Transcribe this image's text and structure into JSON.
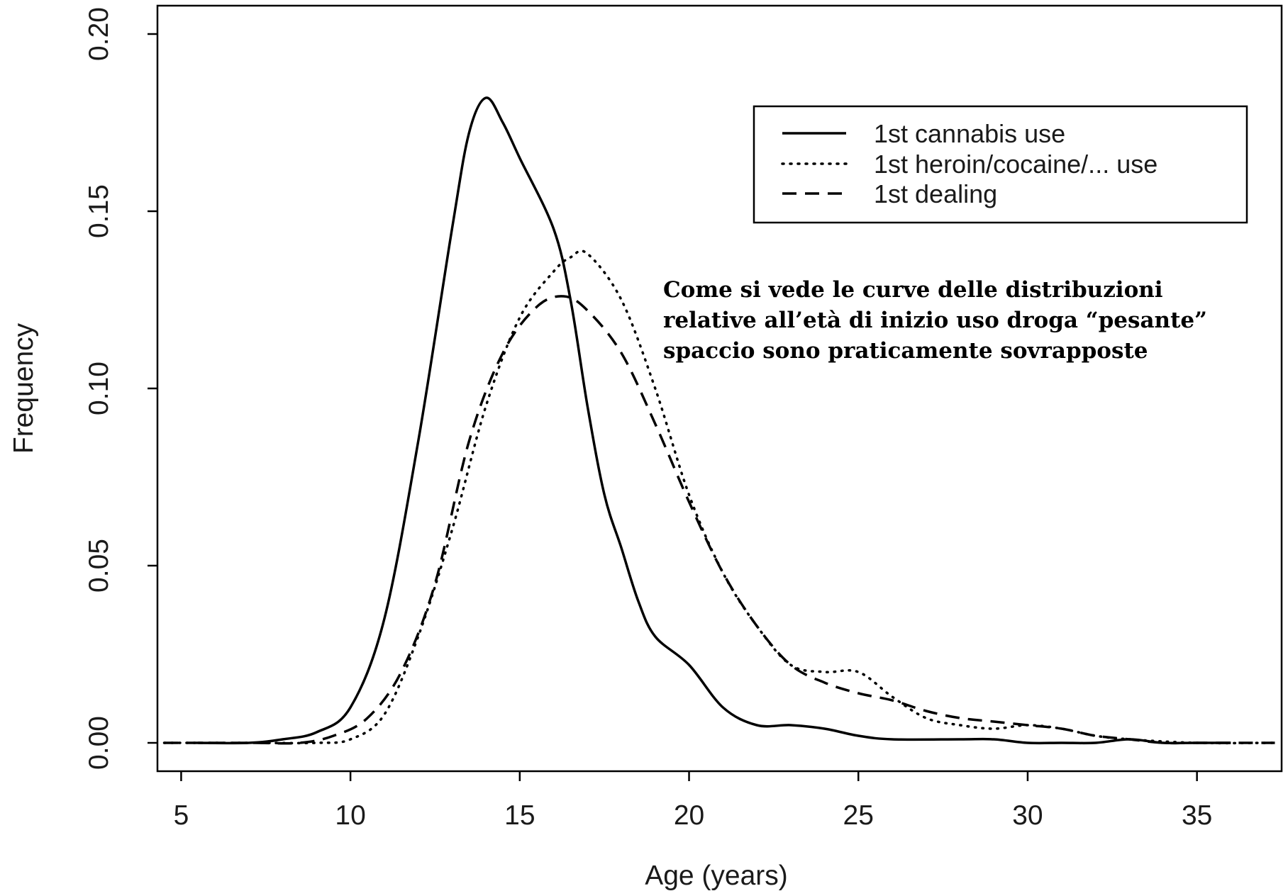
{
  "chart_data": {
    "type": "line",
    "title": "",
    "xlabel": "Age (years)",
    "ylabel": "Frequency",
    "xlim": [
      4.3,
      37.5
    ],
    "ylim": [
      -0.008,
      0.208
    ],
    "xticks": [
      5,
      10,
      15,
      20,
      25,
      30,
      35
    ],
    "xtick_labels": [
      "5",
      "10",
      "15",
      "20",
      "25",
      "30",
      "35"
    ],
    "yticks": [
      0.0,
      0.05,
      0.1,
      0.15,
      0.2
    ],
    "ytick_labels": [
      "0.00",
      "0.05",
      "0.10",
      "0.15",
      "0.20"
    ],
    "grid": false,
    "legend_position": "top-right",
    "series": [
      {
        "name": "1st cannabis use",
        "line_style": "solid",
        "color": "#000000",
        "points": [
          [
            5.5,
            0.0
          ],
          [
            7,
            0.0
          ],
          [
            8,
            0.001
          ],
          [
            9,
            0.003
          ],
          [
            10,
            0.01
          ],
          [
            11,
            0.035
          ],
          [
            12,
            0.085
          ],
          [
            13,
            0.145
          ],
          [
            13.5,
            0.172
          ],
          [
            14,
            0.182
          ],
          [
            14.5,
            0.175
          ],
          [
            15,
            0.165
          ],
          [
            16,
            0.145
          ],
          [
            16.5,
            0.125
          ],
          [
            17,
            0.095
          ],
          [
            17.5,
            0.07
          ],
          [
            18,
            0.055
          ],
          [
            18.5,
            0.04
          ],
          [
            19,
            0.03
          ],
          [
            20,
            0.022
          ],
          [
            21,
            0.01
          ],
          [
            22,
            0.005
          ],
          [
            23,
            0.005
          ],
          [
            24,
            0.004
          ],
          [
            25,
            0.002
          ],
          [
            26,
            0.001
          ],
          [
            28,
            0.001
          ],
          [
            29,
            0.001
          ],
          [
            30,
            0.0
          ],
          [
            31,
            0.0
          ],
          [
            32,
            0.0
          ],
          [
            33,
            0.001
          ],
          [
            34,
            0.0
          ],
          [
            35,
            0.0
          ],
          [
            36,
            0.0
          ]
        ]
      },
      {
        "name": "1st heroin/cocaine/... use",
        "line_style": "dotted",
        "color": "#000000",
        "points": [
          [
            4.5,
            0.0
          ],
          [
            7,
            0.0
          ],
          [
            9,
            0.0
          ],
          [
            10,
            0.001
          ],
          [
            11,
            0.008
          ],
          [
            12,
            0.03
          ],
          [
            13,
            0.06
          ],
          [
            14,
            0.095
          ],
          [
            15,
            0.12
          ],
          [
            16,
            0.133
          ],
          [
            16.5,
            0.137
          ],
          [
            17,
            0.138
          ],
          [
            18,
            0.125
          ],
          [
            19,
            0.1
          ],
          [
            20,
            0.07
          ],
          [
            21,
            0.048
          ],
          [
            22,
            0.033
          ],
          [
            23,
            0.022
          ],
          [
            24,
            0.02
          ],
          [
            25,
            0.02
          ],
          [
            26,
            0.013
          ],
          [
            27,
            0.007
          ],
          [
            28,
            0.005
          ],
          [
            29,
            0.004
          ],
          [
            30,
            0.005
          ],
          [
            31,
            0.004
          ],
          [
            32,
            0.002
          ],
          [
            33,
            0.001
          ],
          [
            35,
            0.0
          ],
          [
            37.3,
            0.0
          ]
        ]
      },
      {
        "name": "1st dealing",
        "line_style": "dashed",
        "color": "#000000",
        "points": [
          [
            4.5,
            0.0
          ],
          [
            7,
            0.0
          ],
          [
            8.5,
            0.0
          ],
          [
            9.5,
            0.002
          ],
          [
            10.5,
            0.007
          ],
          [
            11.5,
            0.02
          ],
          [
            12.5,
            0.045
          ],
          [
            13.5,
            0.085
          ],
          [
            14.5,
            0.11
          ],
          [
            15.5,
            0.123
          ],
          [
            16.3,
            0.126
          ],
          [
            17,
            0.122
          ],
          [
            18,
            0.11
          ],
          [
            19,
            0.09
          ],
          [
            20,
            0.068
          ],
          [
            21,
            0.048
          ],
          [
            22,
            0.033
          ],
          [
            23,
            0.022
          ],
          [
            24,
            0.017
          ],
          [
            25,
            0.014
          ],
          [
            26,
            0.012
          ],
          [
            27,
            0.009
          ],
          [
            28,
            0.007
          ],
          [
            29,
            0.006
          ],
          [
            30,
            0.005
          ],
          [
            31,
            0.004
          ],
          [
            32,
            0.002
          ],
          [
            33,
            0.001
          ],
          [
            34,
            0.0
          ],
          [
            35,
            0.0
          ],
          [
            37.3,
            0.0
          ]
        ]
      }
    ],
    "annotation": [
      "Come si vede le curve delle distribuzioni",
      "relative all’età di inizio uso droga “pesante”",
      "spaccio sono praticamente sovrapposte"
    ]
  }
}
